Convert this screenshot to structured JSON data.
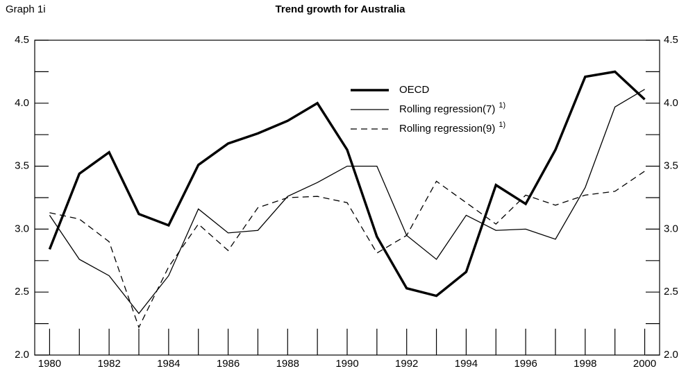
{
  "chart_data": {
    "type": "line",
    "label": "Graph 1i",
    "title": "Trend growth for Australia",
    "x": [
      1980,
      1981,
      1982,
      1983,
      1984,
      1985,
      1986,
      1987,
      1988,
      1989,
      1990,
      1991,
      1992,
      1993,
      1994,
      1995,
      1996,
      1997,
      1998,
      1999,
      2000
    ],
    "xlim": [
      1979.5,
      2000.5
    ],
    "xticks": [
      1980,
      1982,
      1984,
      1986,
      1988,
      1990,
      1992,
      1994,
      1996,
      1998,
      2000
    ],
    "xminorticks": [
      1981,
      1983,
      1985,
      1987,
      1989,
      1991,
      1993,
      1995,
      1997,
      1999
    ],
    "ylim": [
      2.0,
      4.5
    ],
    "yticks": [
      {
        "value": 2,
        "label": "2.0"
      },
      {
        "value": 2.5,
        "label": "2.5"
      },
      {
        "value": 3,
        "label": "3.0"
      },
      {
        "value": 3.5,
        "label": "3.5"
      },
      {
        "value": 4,
        "label": "4.0"
      },
      {
        "value": 4.5,
        "label": "4.5"
      }
    ],
    "yminorticks": [
      2.25,
      2.75,
      3.25,
      3.75,
      4.25
    ],
    "series": [
      {
        "name": "OECD",
        "color": "#000000",
        "width": 3.5,
        "values": [
          2.84,
          3.44,
          3.61,
          3.12,
          3.03,
          3.51,
          3.68,
          3.76,
          3.86,
          4.0,
          3.63,
          2.94,
          2.53,
          2.47,
          2.66,
          3.35,
          3.2,
          3.63,
          4.21,
          4.25,
          4.03
        ]
      },
      {
        "name": "Rolling regression(7)",
        "superscript": "1)",
        "color": "#000000",
        "width": 1.3,
        "values": [
          3.11,
          2.76,
          2.63,
          2.33,
          2.63,
          3.16,
          2.97,
          2.99,
          3.26,
          3.37,
          3.5,
          3.5,
          2.95,
          2.76,
          3.11,
          2.99,
          3.0,
          2.92,
          3.33,
          3.97,
          4.11
        ]
      },
      {
        "name": "Rolling regression(9)",
        "superscript": "1)",
        "color": "#000000",
        "width": 1.3,
        "dash": "9,6",
        "values": [
          3.13,
          3.08,
          2.9,
          2.22,
          2.7,
          3.04,
          2.83,
          3.17,
          3.25,
          3.26,
          3.21,
          2.81,
          2.95,
          3.38,
          3.21,
          3.04,
          3.27,
          3.19,
          3.27,
          3.3,
          3.46
        ]
      }
    ]
  }
}
